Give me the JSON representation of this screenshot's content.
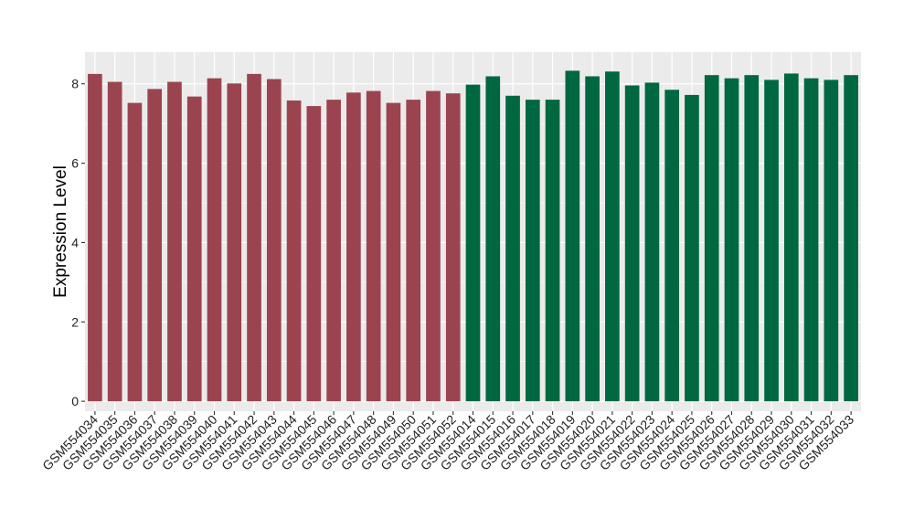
{
  "chart_data": {
    "type": "bar",
    "title": "",
    "xlabel": "",
    "ylabel": "Expression Level",
    "ylim": [
      -0.25,
      8.8
    ],
    "yticks": [
      0,
      2,
      4,
      6,
      8
    ],
    "grid": true,
    "legend": "none",
    "colors": {
      "group1": "#9b4450",
      "group2": "#006840",
      "panel": "#ebebeb",
      "gridline": "#ffffff"
    },
    "categories": [
      "GSM554034",
      "GSM554035",
      "GSM554036",
      "GSM554037",
      "GSM554038",
      "GSM554039",
      "GSM554040",
      "GSM554041",
      "GSM554042",
      "GSM554043",
      "GSM554044",
      "GSM554045",
      "GSM554046",
      "GSM554047",
      "GSM554048",
      "GSM554049",
      "GSM554050",
      "GSM554051",
      "GSM554052",
      "GSM554014",
      "GSM554015",
      "GSM554016",
      "GSM554017",
      "GSM554018",
      "GSM554019",
      "GSM554020",
      "GSM554021",
      "GSM554022",
      "GSM554023",
      "GSM554024",
      "GSM554025",
      "GSM554026",
      "GSM554027",
      "GSM554028",
      "GSM554029",
      "GSM554030",
      "GSM554031",
      "GSM554032",
      "GSM554033"
    ],
    "values": [
      8.25,
      8.05,
      7.52,
      7.87,
      8.05,
      7.68,
      8.14,
      8.01,
      8.25,
      8.12,
      7.58,
      7.44,
      7.6,
      7.78,
      7.82,
      7.52,
      7.6,
      7.82,
      7.76,
      7.98,
      8.19,
      7.7,
      7.6,
      7.6,
      8.33,
      8.19,
      8.31,
      7.96,
      8.03,
      7.85,
      7.72,
      8.22,
      8.14,
      8.22,
      8.1,
      8.26,
      8.14,
      8.1,
      8.22
    ],
    "groups": [
      "group1",
      "group1",
      "group1",
      "group1",
      "group1",
      "group1",
      "group1",
      "group1",
      "group1",
      "group1",
      "group1",
      "group1",
      "group1",
      "group1",
      "group1",
      "group1",
      "group1",
      "group1",
      "group1",
      "group2",
      "group2",
      "group2",
      "group2",
      "group2",
      "group2",
      "group2",
      "group2",
      "group2",
      "group2",
      "group2",
      "group2",
      "group2",
      "group2",
      "group2",
      "group2",
      "group2",
      "group2",
      "group2",
      "group2"
    ]
  }
}
